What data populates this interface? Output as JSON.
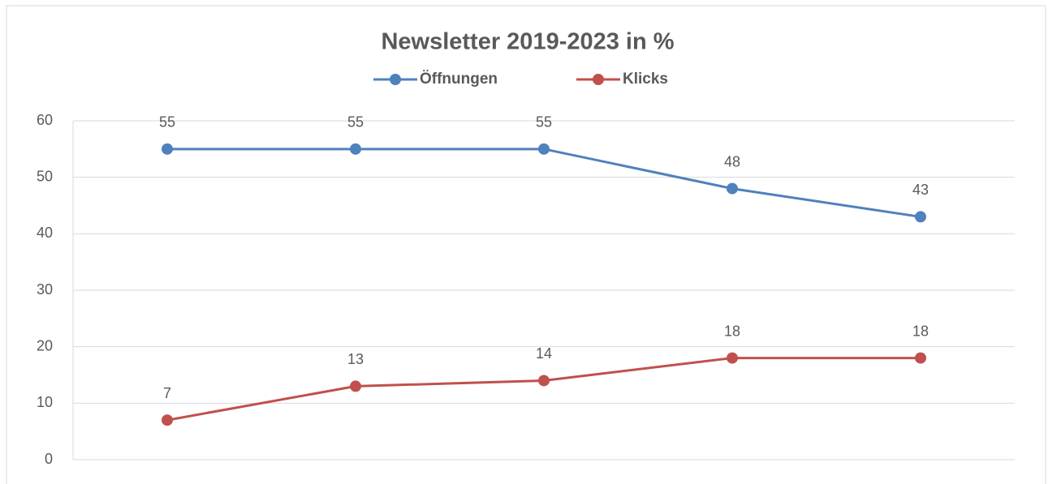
{
  "chart_data": {
    "type": "line",
    "title": "Newsletter 2019-2023 in %",
    "categories": [
      null,
      null,
      null,
      null,
      null
    ],
    "series": [
      {
        "name": "Öffnungen",
        "color": "#4f81bd",
        "values": [
          55,
          55,
          55,
          48,
          43
        ]
      },
      {
        "name": "Klicks",
        "color": "#c0504d",
        "values": [
          7,
          13,
          14,
          18,
          18
        ]
      }
    ],
    "ylim": [
      0,
      60
    ],
    "yticks": [
      0,
      10,
      20,
      30,
      40,
      50,
      60
    ],
    "grid": true,
    "legend": "top"
  }
}
